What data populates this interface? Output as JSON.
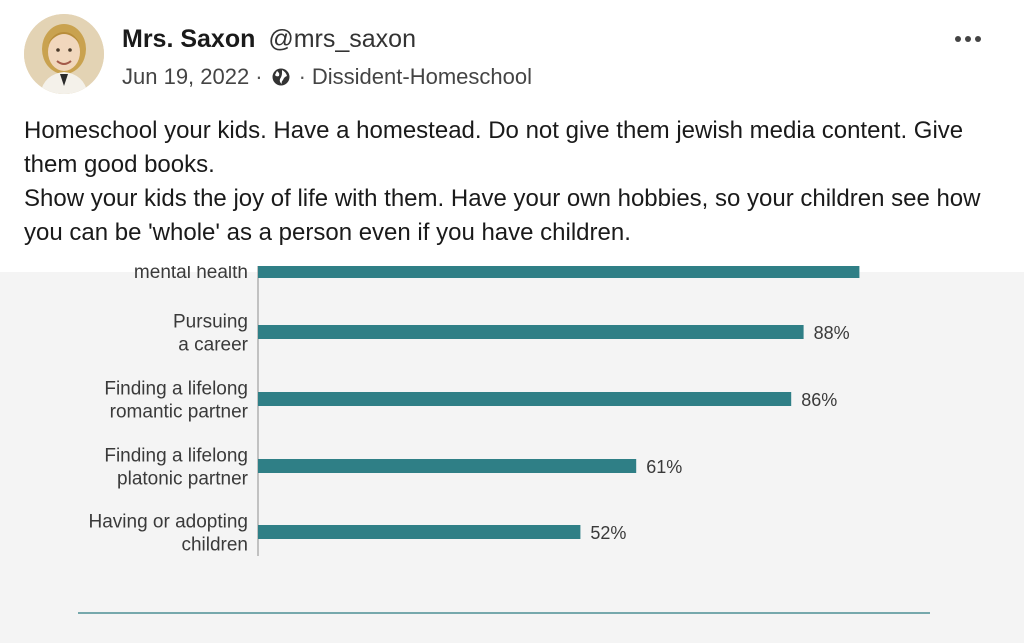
{
  "post": {
    "author_name": "Mrs. Saxon",
    "author_handle": "@mrs_saxon",
    "date": "Jun 19, 2022",
    "separator": "·",
    "group": "Dissident-Homeschool",
    "more_icon": "more-horizontal-icon",
    "globe_icon": "globe-icon",
    "body_lines": [
      "Homeschool your kids. Have a homestead. Do not give them jewish media content. Give them good books.",
      "Show your kids the joy of life with them. Have your own hobbies, so your children see how you can be 'whole' as a person even if you have children."
    ]
  },
  "chart_data": {
    "type": "bar",
    "orientation": "horizontal",
    "categories": [
      [
        "mental health"
      ],
      [
        "Pursuing",
        "a career"
      ],
      [
        "Finding a lifelong",
        "romantic partner"
      ],
      [
        "Finding a lifelong",
        "platonic partner"
      ],
      [
        "Having or adopting",
        "children"
      ]
    ],
    "values": [
      97,
      88,
      86,
      61,
      52
    ],
    "value_labels": [
      "",
      "88%",
      "86%",
      "61%",
      "52%"
    ],
    "xlim": [
      0,
      100
    ],
    "bar_color": "#2f7f86",
    "grid": false
  }
}
